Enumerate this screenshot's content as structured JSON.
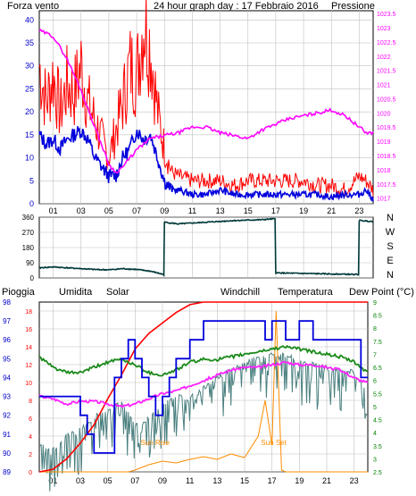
{
  "header": {
    "left": "Forza vento",
    "center": "24 hour graph day : 17 Febbraio 2016",
    "right": "Pressione"
  },
  "bottom_labels": {
    "pioggia": "Pioggia",
    "umidita": "Umidita",
    "solar": "Solar",
    "windchill": "Windchill",
    "temperatura": "Temperatura",
    "dewpoint": "Dew Point (°C)"
  },
  "annotations": {
    "sunrise": "Sun Rise",
    "sunset": "Sun Set"
  },
  "colors": {
    "wind_gust": "#ff0000",
    "wind_avg": "#0000dd",
    "pressure": "#ff00ff",
    "direction": "#003838",
    "rain": "#ff0000",
    "humidity": "#0000dd",
    "solar": "#ff8c00",
    "windchill": "#4a7f7f",
    "temperature": "#1a8a1a",
    "dewpoint": "#ff22ff",
    "tick_blue": "#0000cc",
    "tick_magenta": "#ff00ff",
    "tick_green": "#008000",
    "grid": "#c0c0c0"
  },
  "chart_data": [
    {
      "type": "line",
      "x_ticks": [
        "01",
        "03",
        "05",
        "07",
        "09",
        "11",
        "13",
        "15",
        "17",
        "19",
        "21",
        "23"
      ],
      "y_left_ticks": [
        "0",
        "5",
        "10",
        "15",
        "20",
        "25",
        "30",
        "35",
        "40"
      ],
      "y_left_range": [
        0,
        42
      ],
      "y_right_ticks": [
        "1017",
        "1017.5",
        "1018",
        "1018.5",
        "1019",
        "1019.5",
        "1020",
        "1020.5",
        "1021",
        "1021.5",
        "1022",
        "1022.5",
        "1023",
        "1023.5"
      ],
      "y_right_range": [
        1016.8,
        1023.6
      ],
      "series": [
        {
          "key": "gust",
          "x": [
            0,
            0.5,
            1,
            1.5,
            2,
            2.5,
            3,
            3.5,
            4,
            4.5,
            5,
            5.5,
            6,
            6.5,
            7,
            7.5,
            8,
            8.5,
            9,
            9.5,
            10,
            11,
            12,
            13,
            14,
            15,
            16,
            17,
            18,
            19,
            20,
            21,
            22,
            23,
            23.5,
            24
          ],
          "values": [
            30,
            22,
            28,
            20,
            26,
            24,
            30,
            22,
            18,
            14,
            10,
            16,
            22,
            30,
            28,
            40,
            34,
            20,
            12,
            7,
            6,
            5,
            5,
            5,
            4,
            5,
            5,
            5,
            5,
            5,
            4,
            4,
            3,
            6,
            5,
            3
          ]
        },
        {
          "key": "avg",
          "x": [
            0,
            0.5,
            1,
            1.5,
            2,
            2.5,
            3,
            3.5,
            4,
            4.5,
            5,
            5.5,
            6,
            6.5,
            7,
            7.5,
            8,
            8.5,
            9,
            9.5,
            10,
            11,
            12,
            13,
            14,
            15,
            16,
            17,
            18,
            19,
            20,
            21,
            22,
            23,
            23.5,
            24
          ],
          "values": [
            15,
            13,
            14,
            12,
            14,
            15,
            16,
            14,
            10,
            8,
            6,
            6,
            10,
            12,
            16,
            14,
            15,
            10,
            5,
            3,
            3,
            2,
            2,
            3,
            2,
            2,
            2,
            2,
            2,
            2,
            2,
            1.5,
            2,
            2,
            3,
            1
          ]
        },
        {
          "key": "pressure",
          "x": [
            0,
            1,
            2,
            3,
            4,
            5,
            5.5,
            6,
            7,
            8,
            9,
            10,
            11,
            12,
            13,
            14,
            15,
            16,
            17,
            18,
            19,
            20,
            21,
            22,
            23,
            23.5,
            24
          ],
          "values": [
            1022.9,
            1022.7,
            1021.9,
            1020.8,
            1019.5,
            1018.2,
            1017.9,
            1018.1,
            1018.7,
            1019.1,
            1019.2,
            1019.3,
            1019.5,
            1019.5,
            1019.3,
            1019.2,
            1019.1,
            1019.4,
            1019.6,
            1019.8,
            1019.9,
            1020.0,
            1020.1,
            1019.9,
            1019.5,
            1019.3,
            1019.3
          ]
        }
      ]
    },
    {
      "type": "line",
      "y_ticks": [
        "0",
        "90",
        "180",
        "270",
        "360"
      ],
      "y_range": [
        0,
        360
      ],
      "y_right_labels": [
        "N",
        "W",
        "S",
        "E",
        "N"
      ],
      "series": [
        {
          "key": "direction",
          "x": [
            0,
            1,
            2,
            3,
            4,
            5,
            6,
            7,
            8,
            8.95,
            9.0,
            10,
            12,
            14,
            16,
            16.95,
            17.0,
            18,
            20,
            22,
            22.95,
            23.0,
            24
          ],
          "values": [
            60,
            65,
            60,
            55,
            50,
            48,
            55,
            50,
            40,
            20,
            330,
            320,
            330,
            340,
            345,
            350,
            30,
            28,
            25,
            22,
            20,
            340,
            335
          ]
        }
      ]
    },
    {
      "type": "line",
      "x_ticks": [
        "01",
        "03",
        "05",
        "07",
        "09",
        "11",
        "13",
        "15",
        "17",
        "19",
        "21",
        "23"
      ],
      "y_humidity_ticks": [
        "89",
        "90",
        "91",
        "92",
        "93",
        "94",
        "95",
        "96",
        "97",
        "98"
      ],
      "y_humidity_range": [
        89,
        98
      ],
      "y_temp_ticks": [
        "0",
        "2",
        "4",
        "6",
        "8",
        "10",
        "12",
        "14",
        "16",
        "18"
      ],
      "y_temp_range": [
        0,
        19
      ],
      "y_right_ticks": [
        "2.5",
        "3",
        "3.5",
        "4",
        "4.5",
        "5",
        "5.5",
        "6",
        "6.5",
        "7",
        "7.5",
        "8",
        "8.5",
        "9"
      ],
      "y_right_range": [
        2.5,
        9
      ],
      "series": [
        {
          "key": "rain",
          "x": [
            0,
            1,
            2,
            3,
            4,
            5,
            6,
            7,
            8,
            9,
            10,
            11,
            12,
            14,
            16,
            17,
            18,
            20,
            22,
            24
          ],
          "values": [
            2.5,
            2.6,
            3.0,
            3.6,
            4.3,
            5.3,
            6.2,
            7.2,
            7.8,
            8.2,
            8.6,
            8.9,
            9.0,
            9.0,
            9.0,
            9.0,
            9.0,
            9.0,
            9.0,
            9.0
          ]
        },
        {
          "key": "humidity",
          "x": [
            0,
            0.5,
            1,
            2,
            3,
            3.5,
            4,
            5,
            5.5,
            6,
            6.5,
            7,
            7.5,
            8,
            8.5,
            9,
            9.5,
            10,
            11,
            12,
            13,
            14,
            15,
            16,
            16.5,
            17,
            18,
            19,
            20,
            21,
            22,
            23,
            23.5,
            24
          ],
          "values": [
            93,
            93,
            93,
            93,
            92,
            91,
            90,
            90,
            94,
            95,
            96,
            95,
            94,
            93,
            92,
            93,
            94,
            95,
            96,
            97,
            97,
            97,
            97,
            97,
            96,
            97,
            96,
            97,
            96,
            96,
            96,
            96,
            94,
            94
          ]
        },
        {
          "key": "temperature",
          "x": [
            0,
            1,
            2,
            3,
            4,
            5,
            6,
            7,
            8,
            9,
            10,
            11,
            12,
            13,
            14,
            15,
            16,
            17,
            18,
            19,
            20,
            21,
            22,
            23,
            24
          ],
          "values": [
            6.9,
            6.5,
            6.3,
            6.3,
            6.5,
            6.7,
            6.8,
            6.6,
            6.3,
            6.2,
            6.4,
            6.7,
            6.8,
            6.8,
            6.9,
            7.0,
            7.1,
            7.2,
            7.3,
            7.2,
            7.1,
            7.0,
            6.9,
            6.7,
            6.3
          ]
        },
        {
          "key": "dewpoint",
          "x": [
            0,
            1,
            2,
            3,
            4,
            5,
            6,
            7,
            8,
            9,
            10,
            11,
            12,
            13,
            14,
            15,
            16,
            17,
            18,
            19,
            20,
            21,
            22,
            23,
            24
          ],
          "values": [
            5.4,
            5.3,
            5.1,
            5.2,
            5.2,
            5.1,
            5.0,
            5.1,
            5.3,
            5.5,
            5.6,
            5.8,
            6.0,
            6.2,
            6.4,
            6.5,
            6.5,
            6.6,
            6.7,
            6.6,
            6.6,
            6.5,
            6.4,
            6.1,
            5.9
          ]
        },
        {
          "key": "windchill",
          "x": [
            0,
            1,
            2,
            3,
            4,
            5,
            6,
            7,
            8,
            9,
            10,
            11,
            12,
            13,
            14,
            15,
            16,
            17,
            18,
            19,
            20,
            21,
            22,
            23,
            24
          ],
          "values": [
            3.5,
            3.2,
            3.8,
            4.0,
            4.5,
            4.8,
            5.0,
            4.2,
            4.4,
            5.0,
            5.3,
            5.2,
            5.6,
            6.0,
            6.3,
            6.5,
            6.8,
            6.9,
            6.9,
            6.6,
            6.5,
            6.4,
            6.3,
            6.2,
            5.5
          ]
        },
        {
          "key": "solar",
          "x": [
            0,
            6.5,
            7,
            8,
            9,
            10,
            11,
            12,
            13,
            14,
            15,
            16,
            16.5,
            17,
            17.3,
            17.5,
            17.7,
            18,
            24
          ],
          "values": [
            0,
            0,
            0.2,
            0.8,
            1.2,
            1.0,
            1.4,
            1.7,
            1.4,
            2.0,
            1.6,
            4.0,
            8.0,
            3.0,
            18.0,
            9.0,
            0.2,
            0,
            0
          ]
        }
      ]
    }
  ]
}
